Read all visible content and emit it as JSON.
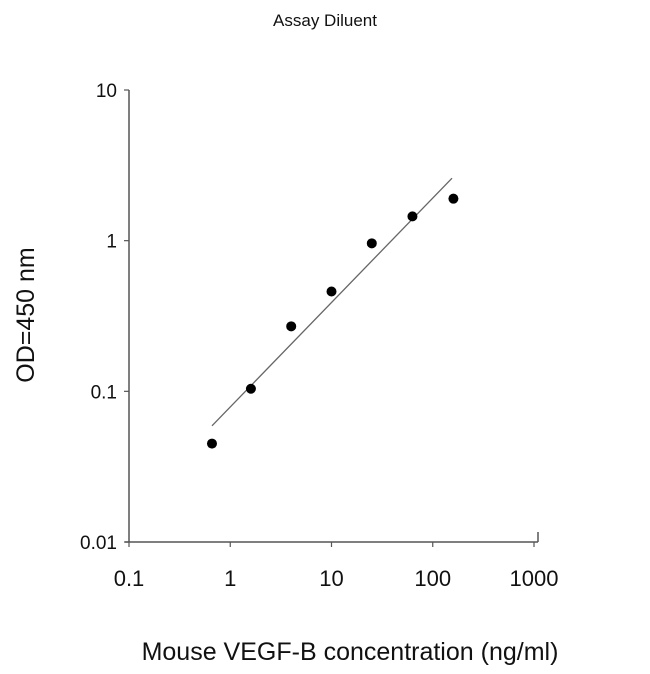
{
  "chart_data": {
    "type": "scatter",
    "title": "Assay Diluent",
    "xlabel": "Mouse VEGF-B concentration (ng/ml)",
    "ylabel": "OD=450 nm",
    "xscale": "log",
    "yscale": "log",
    "xlim": [
      0.1,
      1000
    ],
    "ylim": [
      0.01,
      10
    ],
    "xticks": [
      "0.1",
      "1",
      "10",
      "100",
      "1000"
    ],
    "yticks": [
      "0.01",
      "0.1",
      "1",
      "10"
    ],
    "grid": false,
    "legend": "none",
    "colors": {
      "points": "#000000",
      "fit_line": "#666666",
      "axis": "#555555"
    },
    "series": [
      {
        "x": [
          0.66,
          1.6,
          4,
          10,
          25,
          63,
          160
        ],
        "y": [
          0.045,
          0.104,
          0.27,
          0.46,
          0.96,
          1.45,
          1.9
        ]
      }
    ],
    "fit_line": {
      "x": [
        0.66,
        155
      ],
      "y": [
        0.059,
        2.6
      ]
    }
  }
}
